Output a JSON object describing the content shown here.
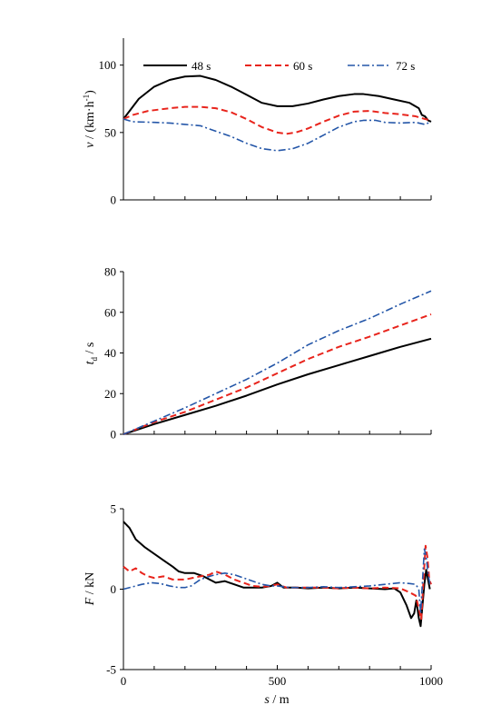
{
  "chart_data": [
    {
      "type": "line",
      "ylabel": "v / (km·h⁻¹)",
      "ylabel_main": "v",
      "ylabel_units": " / (km·h",
      "ylabel_sup": "-1",
      "ylabel_close": ")",
      "xlim": [
        0,
        1000
      ],
      "ylim": [
        0,
        120
      ],
      "yticks": [
        0,
        50,
        100
      ],
      "ytick_labels": [
        "0",
        "50",
        "100"
      ],
      "grid": false,
      "legend_placement": "top",
      "series": [
        {
          "name": "48 s",
          "color": "#000000",
          "style": "solid",
          "points": [
            [
              0,
              60
            ],
            [
              20,
              66
            ],
            [
              50,
              75
            ],
            [
              100,
              84
            ],
            [
              150,
              89
            ],
            [
              200,
              91.5
            ],
            [
              250,
              92
            ],
            [
              300,
              89
            ],
            [
              350,
              84
            ],
            [
              400,
              78
            ],
            [
              450,
              72
            ],
            [
              500,
              69.5
            ],
            [
              550,
              69.5
            ],
            [
              600,
              71.5
            ],
            [
              650,
              74.5
            ],
            [
              700,
              77
            ],
            [
              750,
              78.5
            ],
            [
              780,
              78.5
            ],
            [
              830,
              77
            ],
            [
              880,
              74.5
            ],
            [
              930,
              72
            ],
            [
              960,
              68
            ],
            [
              970,
              63
            ],
            [
              980,
              62
            ],
            [
              990,
              59
            ],
            [
              1000,
              58
            ]
          ]
        },
        {
          "name": "60 s",
          "color": "#e8241c",
          "style": "dashed",
          "points": [
            [
              0,
              60
            ],
            [
              30,
              63
            ],
            [
              80,
              66
            ],
            [
              150,
              68
            ],
            [
              200,
              69
            ],
            [
              250,
              69
            ],
            [
              300,
              68
            ],
            [
              350,
              65
            ],
            [
              400,
              60
            ],
            [
              450,
              54
            ],
            [
              500,
              50
            ],
            [
              530,
              49
            ],
            [
              560,
              50
            ],
            [
              600,
              53
            ],
            [
              650,
              58
            ],
            [
              700,
              62.5
            ],
            [
              750,
              65.5
            ],
            [
              800,
              66
            ],
            [
              850,
              64.5
            ],
            [
              900,
              63.5
            ],
            [
              950,
              62
            ],
            [
              980,
              60
            ],
            [
              1000,
              59
            ]
          ]
        },
        {
          "name": "72 s",
          "color": "#2456a8",
          "style": "dashdot",
          "points": [
            [
              0,
              60
            ],
            [
              30,
              58
            ],
            [
              100,
              57.5
            ],
            [
              150,
              57
            ],
            [
              200,
              56
            ],
            [
              250,
              55
            ],
            [
              300,
              51
            ],
            [
              350,
              47
            ],
            [
              400,
              42
            ],
            [
              450,
              38
            ],
            [
              500,
              36.5
            ],
            [
              550,
              38
            ],
            [
              600,
              42
            ],
            [
              650,
              48
            ],
            [
              700,
              54
            ],
            [
              750,
              58
            ],
            [
              780,
              59
            ],
            [
              820,
              59
            ],
            [
              850,
              57.5
            ],
            [
              900,
              57
            ],
            [
              950,
              57.5
            ],
            [
              980,
              56
            ],
            [
              1000,
              58
            ]
          ]
        }
      ]
    },
    {
      "type": "line",
      "ylabel": "td / s",
      "ylabel_main": "t",
      "ylabel_sub": "d",
      "ylabel_units": " / s",
      "xlim": [
        0,
        1000
      ],
      "ylim": [
        0,
        80
      ],
      "yticks": [
        0,
        20,
        40,
        60,
        80
      ],
      "ytick_labels": [
        "0",
        "20",
        "40",
        "60",
        "80"
      ],
      "grid": false,
      "series": [
        {
          "color": "#000000",
          "style": "solid",
          "points": [
            [
              0,
              0
            ],
            [
              100,
              5
            ],
            [
              200,
              9.5
            ],
            [
              300,
              14
            ],
            [
              400,
              19
            ],
            [
              500,
              24.5
            ],
            [
              600,
              29.5
            ],
            [
              700,
              34
            ],
            [
              800,
              38.5
            ],
            [
              900,
              43
            ],
            [
              1000,
              47
            ]
          ]
        },
        {
          "color": "#e8241c",
          "style": "dashed",
          "points": [
            [
              0,
              0
            ],
            [
              100,
              6
            ],
            [
              200,
              11
            ],
            [
              300,
              17
            ],
            [
              400,
              23
            ],
            [
              500,
              30
            ],
            [
              600,
              37
            ],
            [
              700,
              43
            ],
            [
              800,
              48
            ],
            [
              900,
              53.5
            ],
            [
              1000,
              59
            ]
          ]
        },
        {
          "color": "#2456a8",
          "style": "dashdot",
          "points": [
            [
              0,
              0
            ],
            [
              100,
              6.5
            ],
            [
              200,
              13
            ],
            [
              300,
              20
            ],
            [
              400,
              27
            ],
            [
              500,
              35
            ],
            [
              600,
              44
            ],
            [
              700,
              51
            ],
            [
              800,
              57
            ],
            [
              900,
              64
            ],
            [
              1000,
              70.5
            ]
          ]
        }
      ]
    },
    {
      "type": "line",
      "ylabel": "F / kN",
      "ylabel_main": "F",
      "ylabel_units": " / kN",
      "xlabel": "s / m",
      "xlabel_main": "s",
      "xlabel_units": " / m",
      "xlim": [
        0,
        1000
      ],
      "ylim": [
        -5,
        5
      ],
      "xticks": [
        0,
        500,
        1000
      ],
      "xtick_labels": [
        "0",
        "500",
        "1000"
      ],
      "yticks": [
        -5,
        0,
        5
      ],
      "ytick_labels": [
        "-5",
        "0",
        "5"
      ],
      "grid": false,
      "series": [
        {
          "color": "#000000",
          "style": "solid",
          "points": [
            [
              0,
              4.2
            ],
            [
              20,
              3.8
            ],
            [
              40,
              3.1
            ],
            [
              70,
              2.6
            ],
            [
              100,
              2.2
            ],
            [
              130,
              1.8
            ],
            [
              160,
              1.4
            ],
            [
              180,
              1.1
            ],
            [
              200,
              1.0
            ],
            [
              230,
              1.0
            ],
            [
              260,
              0.8
            ],
            [
              280,
              0.6
            ],
            [
              300,
              0.4
            ],
            [
              330,
              0.5
            ],
            [
              360,
              0.3
            ],
            [
              390,
              0.1
            ],
            [
              420,
              0.1
            ],
            [
              450,
              0.1
            ],
            [
              480,
              0.2
            ],
            [
              500,
              0.4
            ],
            [
              520,
              0.1
            ],
            [
              560,
              0.1
            ],
            [
              600,
              0.05
            ],
            [
              650,
              0.1
            ],
            [
              700,
              0.05
            ],
            [
              750,
              0.1
            ],
            [
              800,
              0.05
            ],
            [
              850,
              0.0
            ],
            [
              880,
              0.05
            ],
            [
              900,
              -0.2
            ],
            [
              920,
              -1.0
            ],
            [
              935,
              -1.8
            ],
            [
              945,
              -1.5
            ],
            [
              952,
              -0.7
            ],
            [
              960,
              -1.8
            ],
            [
              966,
              -2.3
            ],
            [
              972,
              -1.0
            ],
            [
              978,
              0.3
            ],
            [
              984,
              1.2
            ],
            [
              990,
              0.6
            ],
            [
              996,
              0.0
            ]
          ]
        },
        {
          "color": "#e8241c",
          "style": "dashed",
          "points": [
            [
              0,
              1.4
            ],
            [
              20,
              1.1
            ],
            [
              40,
              1.3
            ],
            [
              60,
              1.0
            ],
            [
              80,
              0.8
            ],
            [
              100,
              0.7
            ],
            [
              130,
              0.8
            ],
            [
              160,
              0.6
            ],
            [
              200,
              0.6
            ],
            [
              250,
              0.8
            ],
            [
              280,
              0.9
            ],
            [
              300,
              1.1
            ],
            [
              330,
              0.9
            ],
            [
              360,
              0.6
            ],
            [
              390,
              0.4
            ],
            [
              420,
              0.2
            ],
            [
              450,
              0.15
            ],
            [
              480,
              0.2
            ],
            [
              500,
              0.3
            ],
            [
              530,
              0.1
            ],
            [
              600,
              0.1
            ],
            [
              650,
              0.1
            ],
            [
              700,
              0.05
            ],
            [
              750,
              0.1
            ],
            [
              800,
              0.05
            ],
            [
              850,
              0.1
            ],
            [
              900,
              0.05
            ],
            [
              930,
              -0.2
            ],
            [
              950,
              -0.4
            ],
            [
              960,
              -1.2
            ],
            [
              968,
              -1.9
            ],
            [
              975,
              0.5
            ],
            [
              982,
              2.7
            ],
            [
              988,
              2.0
            ],
            [
              994,
              0.6
            ],
            [
              1000,
              0.3
            ]
          ]
        },
        {
          "color": "#2456a8",
          "style": "dashdot",
          "points": [
            [
              0,
              0.0
            ],
            [
              30,
              0.15
            ],
            [
              60,
              0.3
            ],
            [
              90,
              0.4
            ],
            [
              120,
              0.35
            ],
            [
              150,
              0.2
            ],
            [
              180,
              0.1
            ],
            [
              200,
              0.1
            ],
            [
              220,
              0.2
            ],
            [
              250,
              0.6
            ],
            [
              280,
              0.8
            ],
            [
              300,
              0.9
            ],
            [
              330,
              1.0
            ],
            [
              360,
              0.9
            ],
            [
              390,
              0.7
            ],
            [
              420,
              0.5
            ],
            [
              450,
              0.3
            ],
            [
              480,
              0.2
            ],
            [
              500,
              0.2
            ],
            [
              540,
              0.1
            ],
            [
              600,
              0.1
            ],
            [
              650,
              0.15
            ],
            [
              700,
              0.1
            ],
            [
              750,
              0.15
            ],
            [
              800,
              0.2
            ],
            [
              850,
              0.3
            ],
            [
              900,
              0.4
            ],
            [
              930,
              0.35
            ],
            [
              950,
              0.3
            ],
            [
              960,
              0.0
            ],
            [
              966,
              -1.5
            ],
            [
              972,
              0.5
            ],
            [
              978,
              2.5
            ],
            [
              984,
              2.0
            ],
            [
              990,
              1.0
            ],
            [
              996,
              0.3
            ]
          ]
        }
      ]
    }
  ]
}
